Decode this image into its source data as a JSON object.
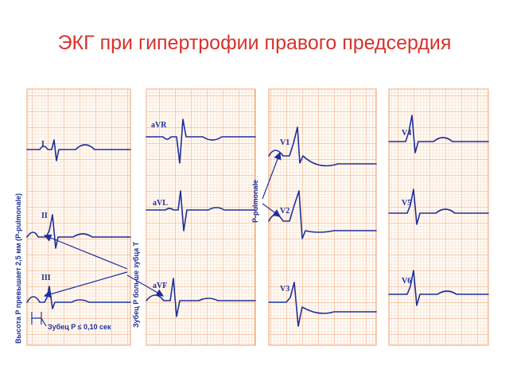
{
  "title": "ЭКГ при гипертрофии правого предсердия",
  "annotations": {
    "p_height": "Высота P превышает 2,5 мм (P-pulmonale)",
    "p_bigger_than_t": "Зубец P больше зубца T",
    "p_pulmonale": "P-pulmonale",
    "p_duration": "Зубец P ≤ 0,10 сек"
  },
  "leads": {
    "I": "I",
    "II": "II",
    "III": "III",
    "aVR": "aVR",
    "aVL": "aVL",
    "aVF": "aVF",
    "V1": "V1",
    "V2": "V2",
    "V3": "V3",
    "V4": "V4",
    "V5": "V5",
    "V6": "V6"
  },
  "colors": {
    "title": "#d8322c",
    "grid_minor": "#f7c9a8",
    "grid_major": "#f0a070",
    "trace": "#1f2f9a"
  }
}
